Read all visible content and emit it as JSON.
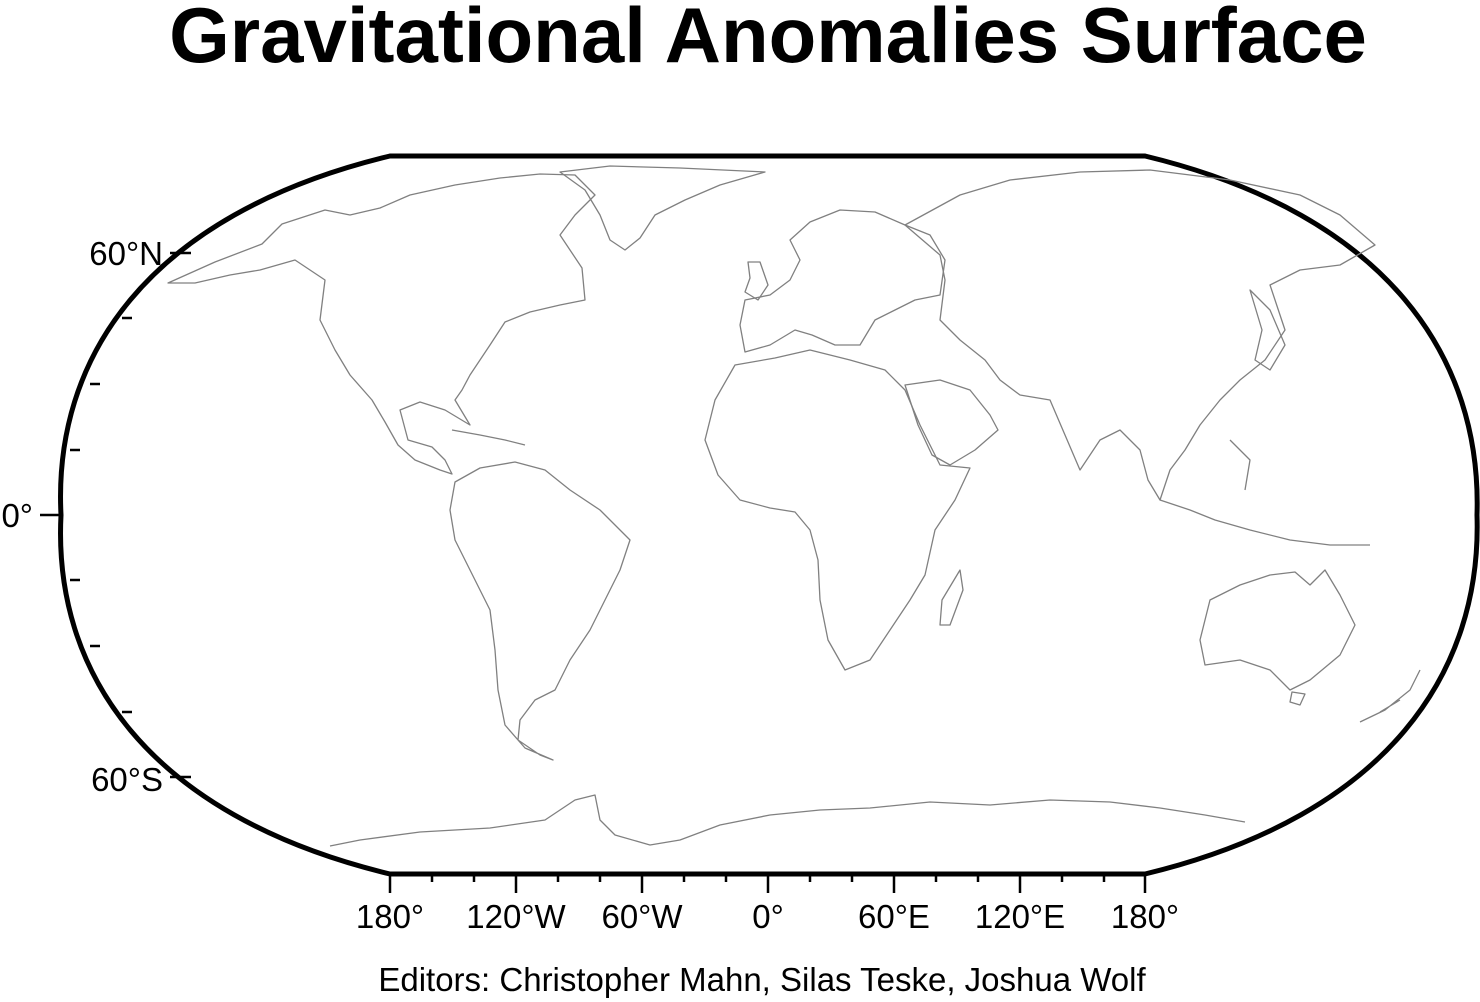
{
  "title": "Gravitational Anomalies Surface",
  "credits": "Editors: Christopher Mahn, Silas Teske, Joshua Wolf",
  "map": {
    "projection": "Winkel-style world map (Robinson-like outline)",
    "land_outline_color": "#808080",
    "frame_color": "#000000",
    "background_color": "#ffffff",
    "lon_range": [
      -180,
      180
    ],
    "lat_range": [
      -90,
      90
    ]
  },
  "lat_labels": [
    "60°N",
    "0°",
    "60°S"
  ],
  "lon_labels": [
    "180°",
    "120°W",
    "60°W",
    "0°",
    "60°E",
    "120°E",
    "180°"
  ]
}
